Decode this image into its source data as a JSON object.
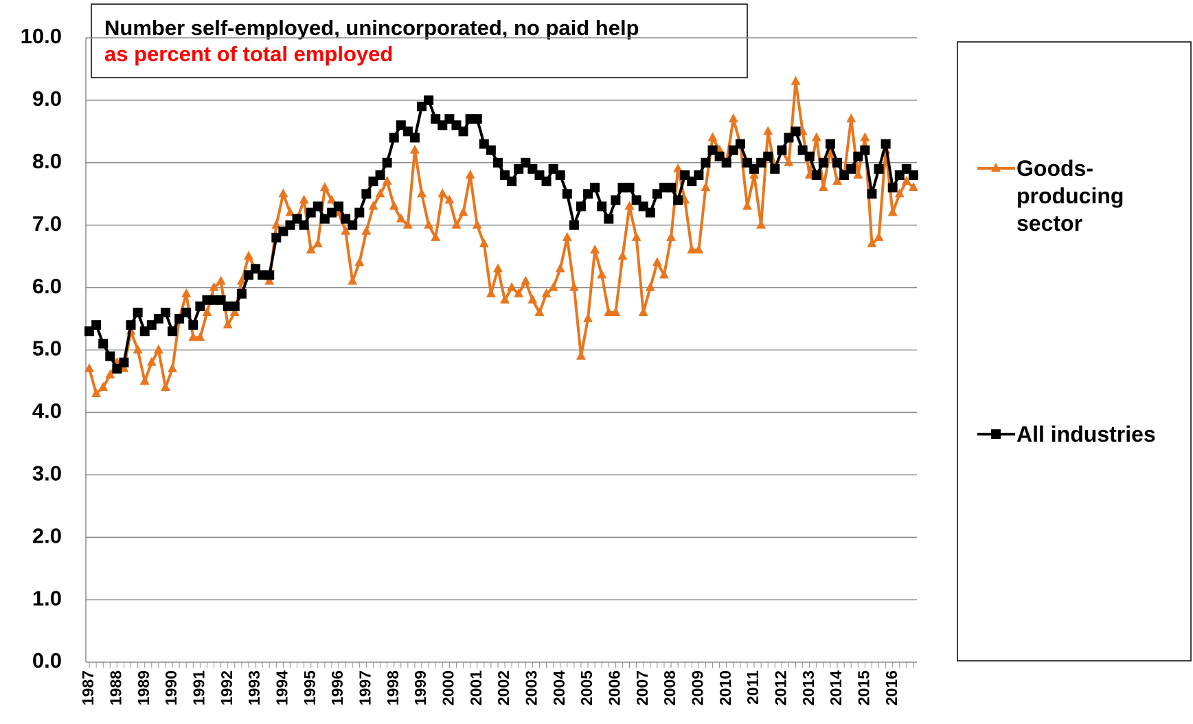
{
  "chart_data": {
    "type": "line",
    "title": "Number self-employed, unincorporated, no paid help",
    "subtitle": "as percent of total employed",
    "categories": [
      "1987",
      null,
      null,
      null,
      "1988",
      null,
      null,
      null,
      "1989",
      null,
      null,
      null,
      "1990",
      null,
      null,
      null,
      "1991",
      null,
      null,
      null,
      "1992",
      null,
      null,
      null,
      "1993",
      null,
      null,
      null,
      "1994",
      null,
      null,
      null,
      "1995",
      null,
      null,
      null,
      "1996",
      null,
      null,
      null,
      "1997",
      null,
      null,
      null,
      "1998",
      null,
      null,
      null,
      "1999",
      null,
      null,
      null,
      "2000",
      null,
      null,
      null,
      "2001",
      null,
      null,
      null,
      "2002",
      null,
      null,
      null,
      "2003",
      null,
      null,
      null,
      "2004",
      null,
      null,
      null,
      "2005",
      null,
      null,
      null,
      "2006",
      null,
      null,
      null,
      "2007",
      null,
      null,
      null,
      "2008",
      null,
      null,
      null,
      "2009",
      null,
      null,
      null,
      "2010",
      null,
      null,
      null,
      "2011",
      null,
      null,
      null,
      "2012",
      null,
      null,
      null,
      "2013",
      null,
      null,
      null,
      "2014",
      null,
      null,
      null,
      "2015",
      null,
      null,
      null,
      "2016",
      null,
      null,
      null
    ],
    "series": [
      {
        "name": "Goods-producing sector",
        "color": "#e8761e",
        "marker": "triangle",
        "values": [
          4.7,
          4.3,
          4.4,
          4.6,
          4.8,
          4.7,
          5.3,
          5.0,
          4.5,
          4.8,
          5.0,
          4.4,
          4.7,
          5.5,
          5.9,
          5.2,
          5.2,
          5.6,
          6.0,
          6.1,
          5.4,
          5.6,
          6.1,
          6.5,
          6.3,
          6.2,
          6.1,
          7.0,
          7.5,
          7.2,
          7.1,
          7.4,
          6.6,
          6.7,
          7.6,
          7.4,
          7.2,
          6.9,
          6.1,
          6.4,
          6.9,
          7.3,
          7.5,
          7.7,
          7.3,
          7.1,
          7.0,
          8.2,
          7.5,
          7.0,
          6.8,
          7.5,
          7.4,
          7.0,
          7.2,
          7.8,
          7.0,
          6.7,
          5.9,
          6.3,
          5.8,
          6.0,
          5.9,
          6.1,
          5.8,
          5.6,
          5.9,
          6.0,
          6.3,
          6.8,
          6.0,
          4.9,
          5.5,
          6.6,
          6.2,
          5.6,
          5.6,
          6.5,
          7.3,
          6.8,
          5.6,
          6.0,
          6.4,
          6.2,
          6.8,
          7.9,
          7.4,
          6.6,
          6.6,
          7.6,
          8.4,
          8.2,
          8.0,
          8.7,
          8.3,
          7.3,
          7.8,
          7.0,
          8.5,
          7.9,
          8.2,
          8.0,
          9.3,
          8.5,
          7.8,
          8.4,
          7.6,
          8.2,
          7.7,
          7.8,
          8.7,
          7.8,
          8.4,
          6.7,
          6.8,
          8.2,
          7.2,
          7.5,
          7.7,
          7.6
        ]
      },
      {
        "name": "All industries",
        "color": "#000000",
        "marker": "square",
        "values": [
          5.3,
          5.4,
          5.1,
          4.9,
          4.7,
          4.8,
          5.4,
          5.6,
          5.3,
          5.4,
          5.5,
          5.6,
          5.3,
          5.5,
          5.6,
          5.4,
          5.7,
          5.8,
          5.8,
          5.8,
          5.7,
          5.7,
          5.9,
          6.2,
          6.3,
          6.2,
          6.2,
          6.8,
          6.9,
          7.0,
          7.1,
          7.0,
          7.2,
          7.3,
          7.1,
          7.2,
          7.3,
          7.1,
          7.0,
          7.2,
          7.5,
          7.7,
          7.8,
          8.0,
          8.4,
          8.6,
          8.5,
          8.4,
          8.9,
          9.0,
          8.7,
          8.6,
          8.7,
          8.6,
          8.5,
          8.7,
          8.7,
          8.3,
          8.2,
          8.0,
          7.8,
          7.7,
          7.9,
          8.0,
          7.9,
          7.8,
          7.7,
          7.9,
          7.8,
          7.5,
          7.0,
          7.3,
          7.5,
          7.6,
          7.3,
          7.1,
          7.4,
          7.6,
          7.6,
          7.4,
          7.3,
          7.2,
          7.5,
          7.6,
          7.6,
          7.4,
          7.8,
          7.7,
          7.8,
          8.0,
          8.2,
          8.1,
          8.0,
          8.2,
          8.3,
          8.0,
          7.9,
          8.0,
          8.1,
          7.9,
          8.2,
          8.4,
          8.5,
          8.2,
          8.1,
          7.8,
          8.0,
          8.3,
          8.0,
          7.8,
          7.9,
          8.1,
          8.2,
          7.5,
          7.9,
          8.3,
          7.6,
          7.8,
          7.9,
          7.8
        ]
      }
    ],
    "ylim": [
      0,
      10
    ],
    "yticks": [
      {
        "value": 0,
        "label": "0.0"
      },
      {
        "value": 1,
        "label": "1.0"
      },
      {
        "value": 2,
        "label": "2.0"
      },
      {
        "value": 3,
        "label": "3.0"
      },
      {
        "value": 4,
        "label": "4.0"
      },
      {
        "value": 5,
        "label": "5.0"
      },
      {
        "value": 6,
        "label": "6.0"
      },
      {
        "value": 7,
        "label": "7.0"
      },
      {
        "value": 8,
        "label": "8.0"
      },
      {
        "value": 9,
        "label": "9.0"
      },
      {
        "value": 10,
        "label": "10.0"
      }
    ],
    "grid": true,
    "legend": "right"
  }
}
